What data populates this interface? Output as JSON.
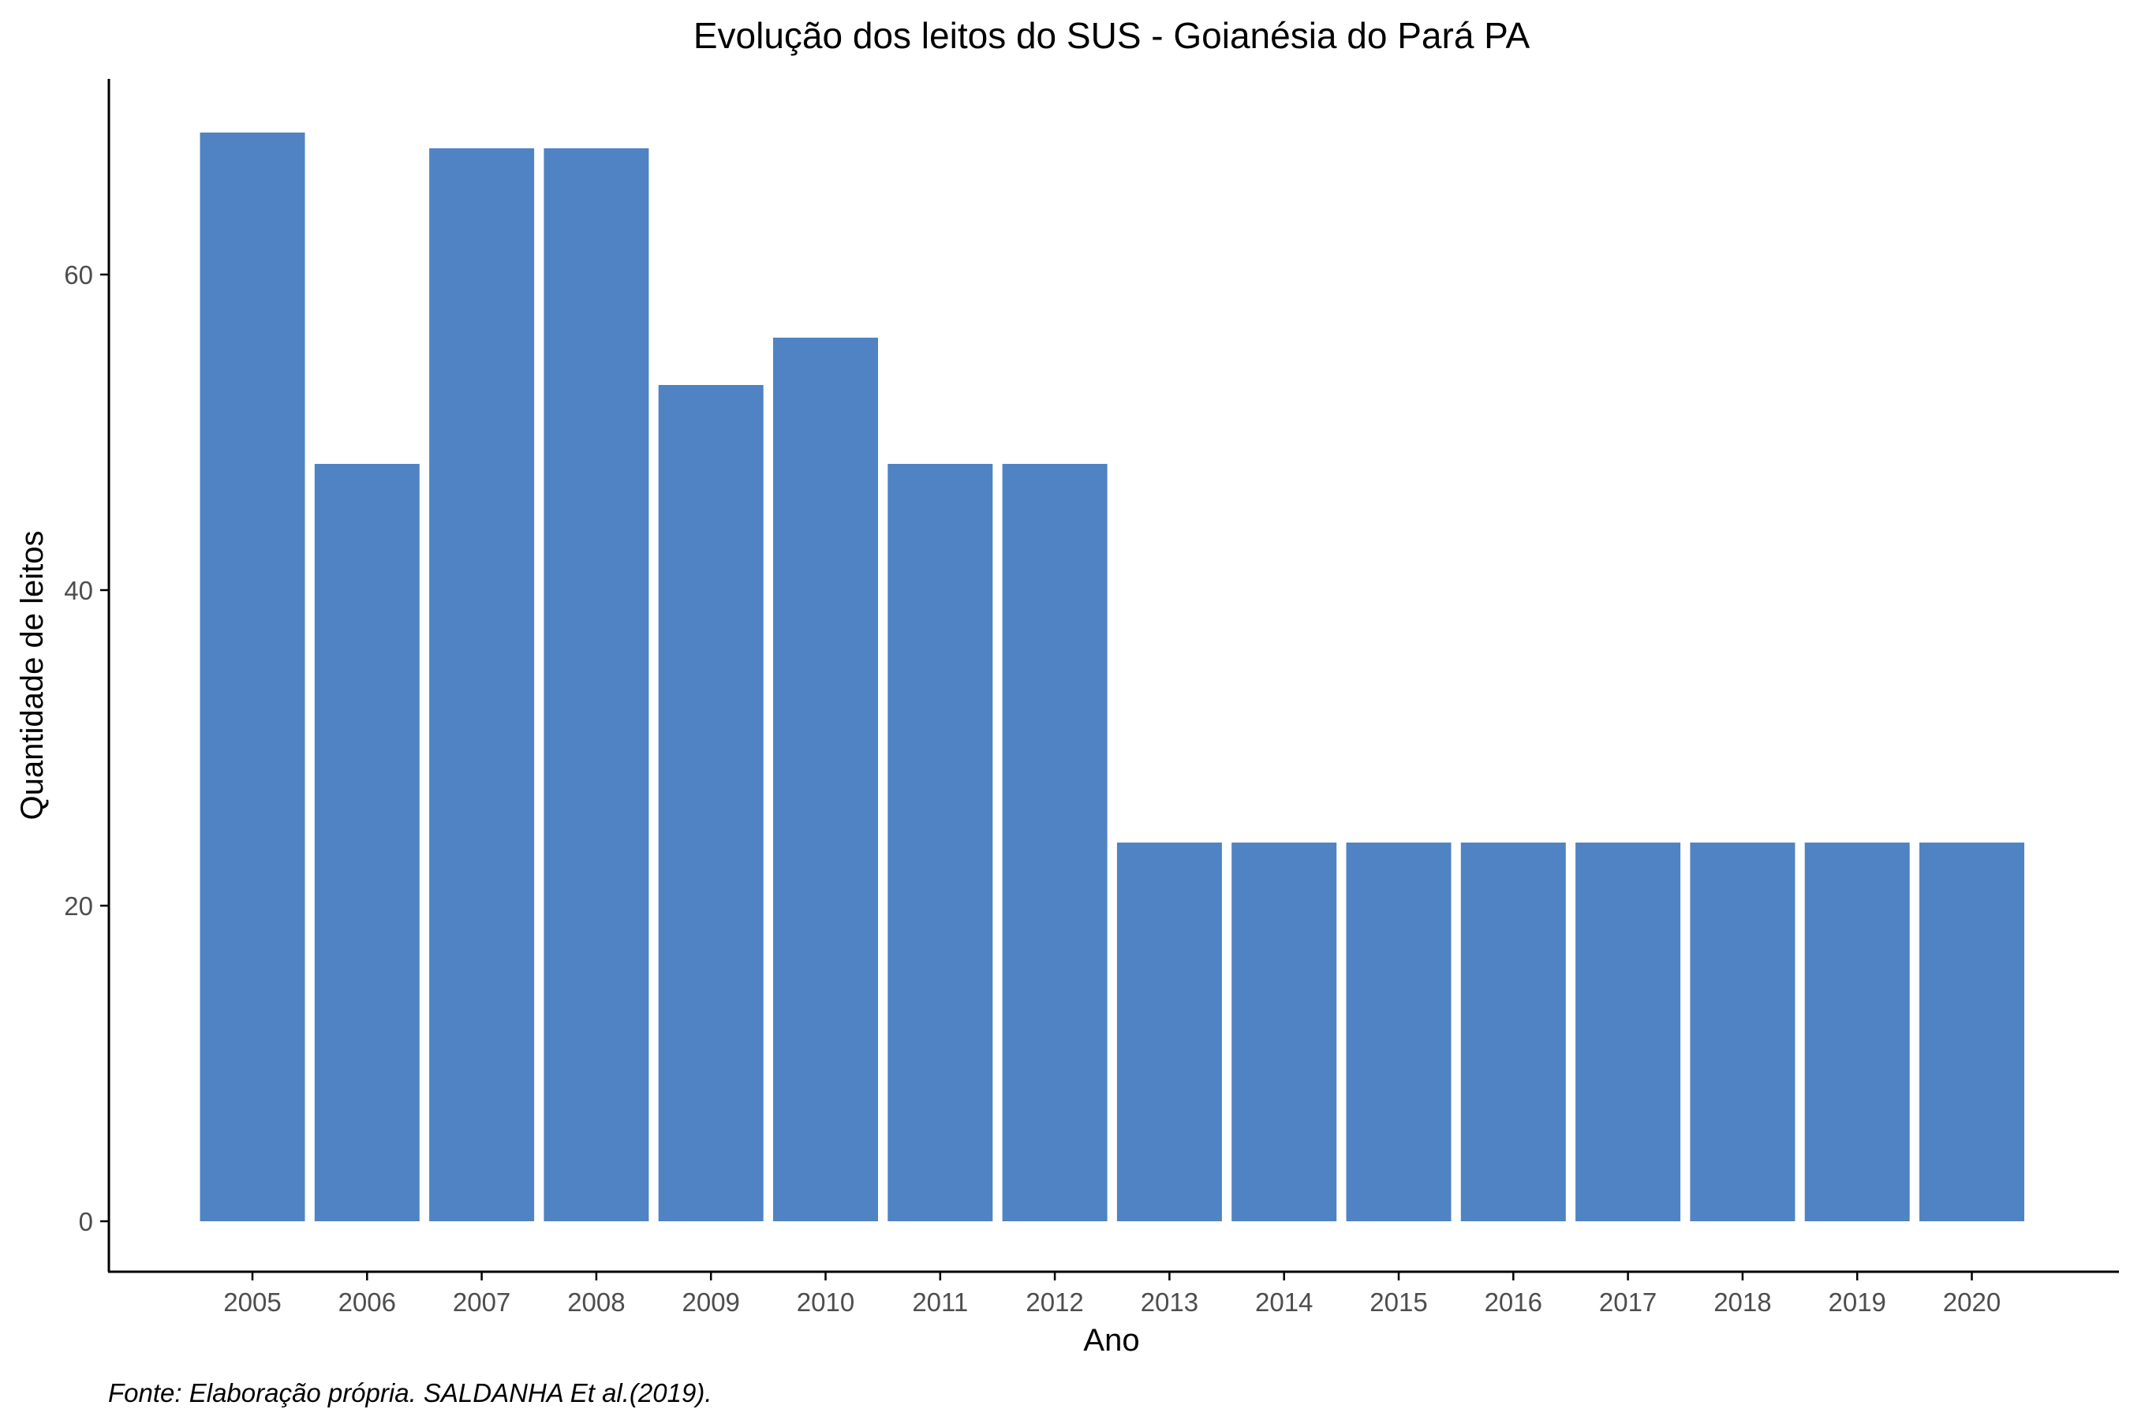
{
  "chart_data": {
    "type": "bar",
    "title": "Evolução dos leitos do SUS -  Goianésia do Pará PA",
    "xlabel": "Ano",
    "ylabel": "Quantidade de leitos",
    "caption": "Fonte: Elaboração própria. SALDANHA Et al.(2019).",
    "categories": [
      "2005",
      "2006",
      "2007",
      "2008",
      "2009",
      "2010",
      "2011",
      "2012",
      "2013",
      "2014",
      "2015",
      "2016",
      "2017",
      "2018",
      "2019",
      "2020"
    ],
    "values": [
      69,
      48,
      68,
      68,
      53,
      56,
      48,
      48,
      24,
      24,
      24,
      24,
      24,
      24,
      24,
      24
    ],
    "ylim": [
      -3.2,
      72.4
    ],
    "y_ticks": [
      0,
      20,
      40,
      60
    ],
    "grid": false,
    "bar_color": "#4f83c3",
    "axis_color": "#000000",
    "tick_label_color": "#4d4d4d"
  }
}
